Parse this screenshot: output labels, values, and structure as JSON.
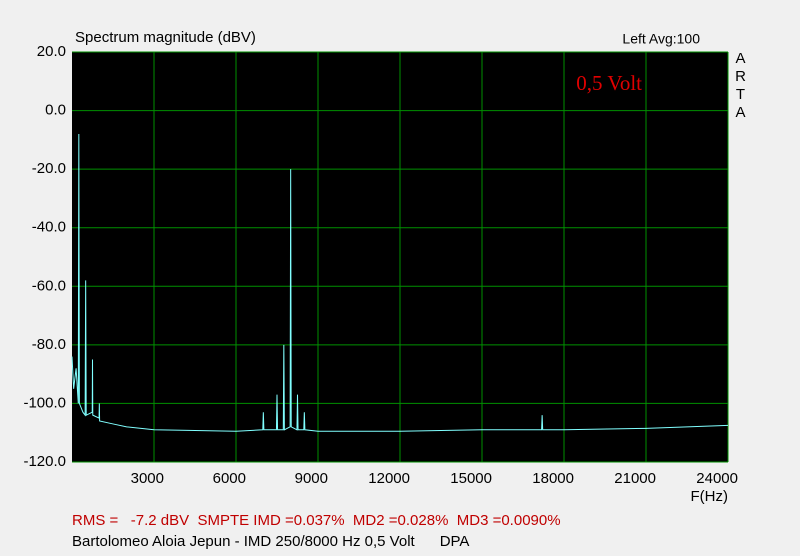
{
  "chart_data": {
    "type": "line",
    "title": "Spectrum magnitude (dBV)",
    "status": "Left  Avg:100",
    "brand": "ARTA",
    "annotation": "0,5 Volt",
    "xlabel": "F(Hz)",
    "footer_metrics": "RMS =   -7.2 dBV  SMPTE IMD =0.037%  MD2 =0.028%  MD3 =0.0090%",
    "footer_caption": "Bartolomeo Aloia Jepun - IMD 250/8000 Hz 0,5 Volt      DPA",
    "xlim": [
      0,
      24000
    ],
    "xticks": [
      3000,
      6000,
      9000,
      12000,
      15000,
      18000,
      21000,
      24000
    ],
    "ylim": [
      -120,
      20
    ],
    "yticks": [
      {
        "value": 20,
        "label": "20.0"
      },
      {
        "value": 0,
        "label": "0.0"
      },
      {
        "value": -20,
        "label": "-20.0"
      },
      {
        "value": -40,
        "label": "-40.0"
      },
      {
        "value": -60,
        "label": "-60.0"
      },
      {
        "value": -80,
        "label": "-80.0"
      },
      {
        "value": -100,
        "label": "-100.0"
      },
      {
        "value": -120,
        "label": "-120.0"
      }
    ],
    "grid": true,
    "x": [
      0,
      60,
      150,
      230,
      250,
      270,
      400,
      480,
      500,
      520,
      740,
      750,
      760,
      990,
      1000,
      1010,
      1500,
      2000,
      3000,
      6000,
      6980,
      7000,
      7020,
      7480,
      7500,
      7520,
      7730,
      7750,
      7770,
      7980,
      8000,
      8020,
      8230,
      8250,
      8270,
      8480,
      8500,
      8520,
      9000,
      12000,
      15000,
      17180,
      17200,
      17220,
      18000,
      21000,
      24000
    ],
    "series": [
      {
        "color": "#80ffff",
        "values": [
          -84,
          -95,
          -88,
          -100,
          -8,
          -100,
          -103,
          -104,
          -58,
          -104,
          -103,
          -85,
          -104,
          -105,
          -100,
          -106,
          -107,
          -108,
          -109,
          -109.5,
          -109,
          -103,
          -109,
          -109,
          -97,
          -109,
          -109,
          -80,
          -109,
          -108,
          -20,
          -108,
          -109,
          -97,
          -109,
          -109,
          -103,
          -109,
          -109.5,
          -109.5,
          -109,
          -109,
          -104,
          -109,
          -109,
          -108.5,
          -107.5
        ]
      }
    ]
  }
}
